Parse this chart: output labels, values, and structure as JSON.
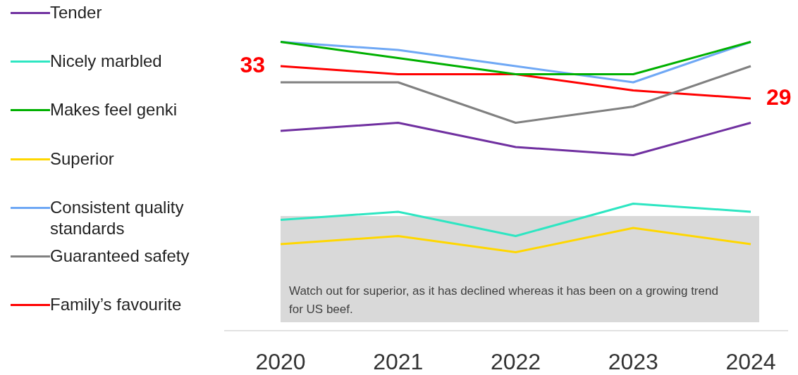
{
  "chart_data": {
    "type": "line",
    "legend": "left",
    "tick_labels": "x",
    "categories": [
      "2020",
      "2021",
      "2022",
      "2023",
      "2024"
    ],
    "series": [
      {
        "name": "Tender",
        "color": "#7030a0",
        "values": [
          25,
          26,
          23,
          22,
          26
        ]
      },
      {
        "name": "Nicely marbled",
        "color": "#2ee6c2",
        "values": [
          14,
          15,
          12,
          16,
          15
        ]
      },
      {
        "name": "Makes feel genki",
        "color": "#00b000",
        "values": [
          36,
          34,
          32,
          32,
          36
        ]
      },
      {
        "name": "Superior",
        "color": "#ffd700",
        "values": [
          11,
          12,
          10,
          13,
          11
        ]
      },
      {
        "name": "Consistent quality standards",
        "color": "#6fa8f5",
        "values": [
          36,
          35,
          33,
          31,
          36
        ]
      },
      {
        "name": "Guaranteed safety",
        "color": "#808080",
        "values": [
          31,
          31,
          26,
          28,
          33
        ]
      },
      {
        "name": "Family’s favourite",
        "color": "#ff0000",
        "values": [
          33,
          32,
          32,
          30,
          29
        ],
        "value_labels": [
          "33",
          null,
          null,
          null,
          "29"
        ]
      }
    ],
    "annotations": [
      "Watch out for superior, as it has declined whereas it has been on a growing trend for US beef."
    ]
  }
}
